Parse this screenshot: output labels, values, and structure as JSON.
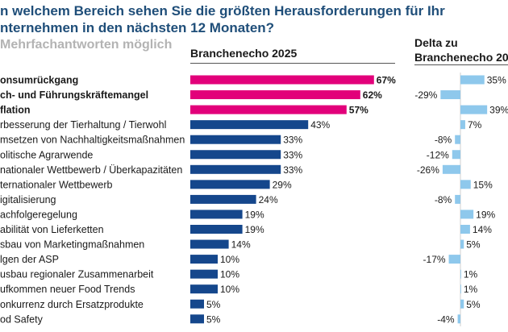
{
  "title": "n welchem Bereich sehen Sie die größten Herausforderungen für Ihr\nnternehmen in den nächsten 12 Monaten?",
  "subtitle": "Mehrfachantworten möglich",
  "colors": {
    "highlight": "#e2007a",
    "main": "#15478c",
    "delta": "#8ec8ec",
    "title": "#1f4e79"
  },
  "chart_data": [
    {
      "type": "bar",
      "orientation": "horizontal",
      "title": "Branchenecho 2025",
      "unit": "%",
      "xlim": [
        0,
        70
      ],
      "categories": [
        "onsumrückgang",
        "ch- und Führungskräftemangel",
        "flation",
        "rbesserung der Tierhaltung / Tierwohl",
        "msetzen von Nachhaltigkeitsmaßnahmen",
        "olitische Agrarwende",
        "nationaler Wettbewerb / Überkapazitäten",
        "ternationaler Wettbewerb",
        "igitalisierung",
        "achfolgeregelung",
        "abilität von Lieferketten",
        "sbau von Marketingmaßnahmen",
        "lgen der ASP",
        "usbau regionaler Zusammenarbeit",
        "ufkommen neuer Food Trends",
        "onkurrenz durch Ersatzprodukte",
        "od Safety"
      ],
      "values": [
        67,
        62,
        57,
        43,
        33,
        33,
        33,
        29,
        24,
        19,
        19,
        14,
        10,
        10,
        10,
        5,
        5
      ],
      "highlighted": [
        true,
        true,
        true,
        false,
        false,
        false,
        false,
        false,
        false,
        false,
        false,
        false,
        false,
        false,
        false,
        false,
        false
      ],
      "value_labels": [
        "67%",
        "62%",
        "57%",
        "43%",
        "33%",
        "33%",
        "33%",
        "29%",
        "24%",
        "19%",
        "19%",
        "14%",
        "10%",
        "10%",
        "10%",
        "5%",
        "5%"
      ]
    },
    {
      "type": "bar",
      "orientation": "horizontal",
      "title": "Delta zu\nBranchenecho 20",
      "unit": "%",
      "values": [
        35,
        -29,
        39,
        7,
        -8,
        -12,
        -26,
        15,
        -8,
        19,
        14,
        5,
        -17,
        1,
        1,
        5,
        -4
      ],
      "value_labels": [
        "35%",
        "-29%",
        "39%",
        "7%",
        "-8%",
        "-12%",
        "-26%",
        "15%",
        "-8%",
        "19%",
        "14%",
        "5%",
        "-17%",
        "1%",
        "1%",
        "5%",
        "-4%"
      ]
    }
  ]
}
